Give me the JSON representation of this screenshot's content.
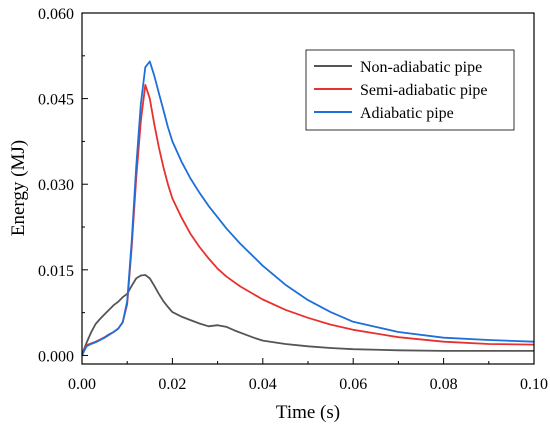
{
  "chart_data": {
    "type": "line",
    "title": "",
    "xlabel": "Time (s)",
    "ylabel": "Energy (MJ)",
    "xlim": [
      0.0,
      0.1
    ],
    "ylim": [
      -0.0015,
      0.06
    ],
    "x_ticks": [
      "0.00",
      "0.02",
      "0.04",
      "0.06",
      "0.08",
      "0.10"
    ],
    "x_tick_values": [
      0.0,
      0.02,
      0.04,
      0.06,
      0.08,
      0.1
    ],
    "y_ticks": [
      "0.000",
      "0.015",
      "0.030",
      "0.045",
      "0.060"
    ],
    "y_tick_values": [
      0.0,
      0.015,
      0.03,
      0.045,
      0.06
    ],
    "grid": false,
    "legend_position": "top-right",
    "series": [
      {
        "name": "Non-adiabatic pipe",
        "color": "#555555",
        "x": [
          0.0,
          0.001,
          0.002,
          0.003,
          0.004,
          0.005,
          0.006,
          0.007,
          0.008,
          0.009,
          0.01,
          0.011,
          0.012,
          0.013,
          0.014,
          0.015,
          0.016,
          0.017,
          0.018,
          0.019,
          0.02,
          0.022,
          0.024,
          0.026,
          0.028,
          0.03,
          0.032,
          0.034,
          0.036,
          0.038,
          0.04,
          0.045,
          0.05,
          0.055,
          0.06,
          0.07,
          0.08,
          0.09,
          0.1
        ],
        "y": [
          0.0002,
          0.0022,
          0.004,
          0.0055,
          0.0064,
          0.0072,
          0.008,
          0.0088,
          0.0094,
          0.0102,
          0.0108,
          0.0122,
          0.0135,
          0.014,
          0.0141,
          0.0135,
          0.0122,
          0.0108,
          0.0095,
          0.0085,
          0.0076,
          0.0068,
          0.0062,
          0.0056,
          0.0051,
          0.0053,
          0.005,
          0.0043,
          0.0037,
          0.0031,
          0.0026,
          0.002,
          0.0016,
          0.0013,
          0.0011,
          0.0009,
          0.0008,
          0.0008,
          0.0008
        ]
      },
      {
        "name": "Semi-adiabatic pipe",
        "color": "#e8312f",
        "x": [
          0.0,
          0.001,
          0.002,
          0.003,
          0.004,
          0.005,
          0.006,
          0.007,
          0.008,
          0.009,
          0.01,
          0.011,
          0.012,
          0.013,
          0.014,
          0.015,
          0.016,
          0.017,
          0.018,
          0.019,
          0.02,
          0.022,
          0.024,
          0.026,
          0.028,
          0.03,
          0.032,
          0.035,
          0.04,
          0.045,
          0.05,
          0.055,
          0.06,
          0.07,
          0.08,
          0.09,
          0.1
        ],
        "y": [
          0.0,
          0.0018,
          0.0021,
          0.0024,
          0.0028,
          0.0032,
          0.0037,
          0.0041,
          0.0047,
          0.0058,
          0.009,
          0.019,
          0.031,
          0.041,
          0.0474,
          0.045,
          0.0405,
          0.0365,
          0.033,
          0.03,
          0.0275,
          0.0242,
          0.0213,
          0.019,
          0.017,
          0.0152,
          0.0138,
          0.0121,
          0.0098,
          0.008,
          0.0066,
          0.0054,
          0.0045,
          0.0032,
          0.0024,
          0.002,
          0.0019
        ]
      },
      {
        "name": "Adiabatic pipe",
        "color": "#1e6fd9",
        "x": [
          0.0,
          0.001,
          0.002,
          0.003,
          0.004,
          0.005,
          0.006,
          0.007,
          0.008,
          0.009,
          0.01,
          0.011,
          0.012,
          0.013,
          0.014,
          0.015,
          0.016,
          0.017,
          0.018,
          0.019,
          0.02,
          0.022,
          0.024,
          0.026,
          0.028,
          0.03,
          0.032,
          0.035,
          0.04,
          0.045,
          0.05,
          0.055,
          0.06,
          0.07,
          0.08,
          0.09,
          0.1
        ],
        "y": [
          0.0,
          0.0016,
          0.002,
          0.0023,
          0.0027,
          0.0031,
          0.0036,
          0.0041,
          0.0047,
          0.0058,
          0.0095,
          0.02,
          0.033,
          0.044,
          0.0505,
          0.0515,
          0.049,
          0.046,
          0.043,
          0.04,
          0.0375,
          0.034,
          0.031,
          0.0285,
          0.0262,
          0.0242,
          0.0222,
          0.0196,
          0.0157,
          0.0124,
          0.0097,
          0.0076,
          0.0059,
          0.0041,
          0.0031,
          0.0027,
          0.0024
        ]
      }
    ]
  }
}
